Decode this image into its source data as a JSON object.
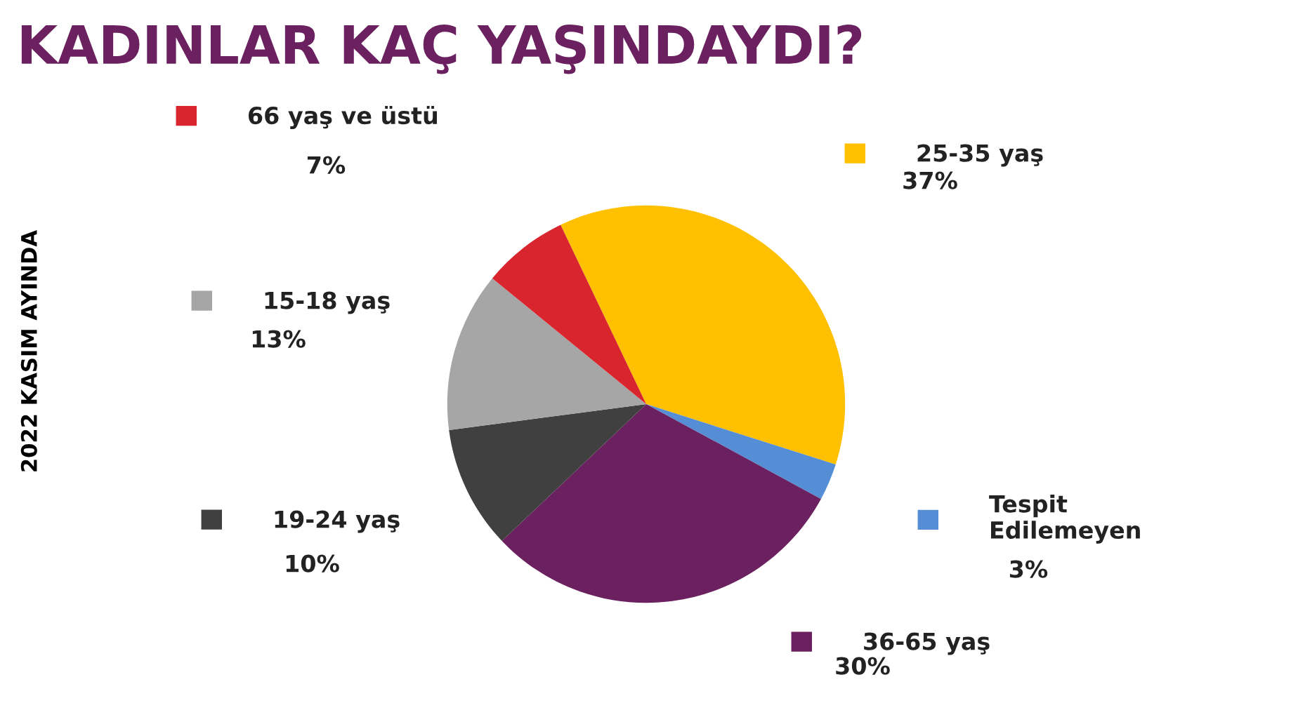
{
  "chart_data": {
    "type": "pie",
    "title": "KADINLAR KAÇ YAŞINDAYDI?",
    "annotations": [
      "2022 KASIM AYINDA"
    ],
    "categories": [
      "25-35 yaş",
      "Tespit Edilemeyen",
      "36-65 yaş",
      "19-24 yaş",
      "15-18 yaş",
      "66 yaş ve üstü"
    ],
    "values": [
      37,
      3,
      30,
      10,
      13,
      7
    ],
    "colors": [
      "#ffc000",
      "#558ed5",
      "#6b2060",
      "#404040",
      "#a6a6a6",
      "#d9262e"
    ],
    "value_labels": [
      "37%",
      "3%",
      "30%",
      "10%",
      "13%",
      "7%"
    ],
    "legend": "right"
  }
}
